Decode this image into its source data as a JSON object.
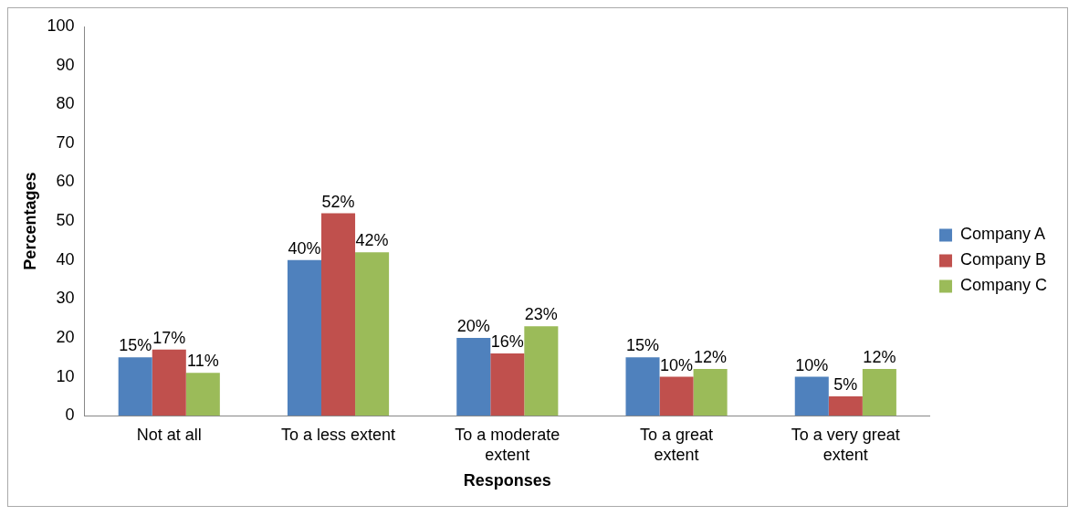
{
  "chart_data": {
    "type": "bar",
    "xlabel": "Responses",
    "ylabel": "Percentages",
    "categories": [
      "Not at all",
      "To a less extent",
      "To a moderate extent",
      "To a great extent",
      "To a very great extent"
    ],
    "series": [
      {
        "name": "Company A",
        "color": "#4f81bd",
        "values": [
          15,
          40,
          20,
          15,
          10
        ],
        "value_labels": [
          "15%",
          "40%",
          "20%",
          "15%",
          "10%"
        ]
      },
      {
        "name": "Company B",
        "color": "#c0504d",
        "values": [
          17,
          52,
          16,
          10,
          5
        ],
        "value_labels": [
          "17%",
          "52%",
          "16%",
          "10%",
          "5%"
        ]
      },
      {
        "name": "Company C",
        "color": "#9bbb59",
        "values": [
          11,
          42,
          23,
          12,
          12
        ],
        "value_labels": [
          "11%",
          "42%",
          "23%",
          "12%",
          "12%"
        ]
      }
    ],
    "ylim": [
      0,
      100
    ],
    "yticks": [
      0,
      10,
      20,
      30,
      40,
      50,
      60,
      70,
      80,
      90,
      100
    ],
    "grid": false,
    "legend": "right"
  }
}
